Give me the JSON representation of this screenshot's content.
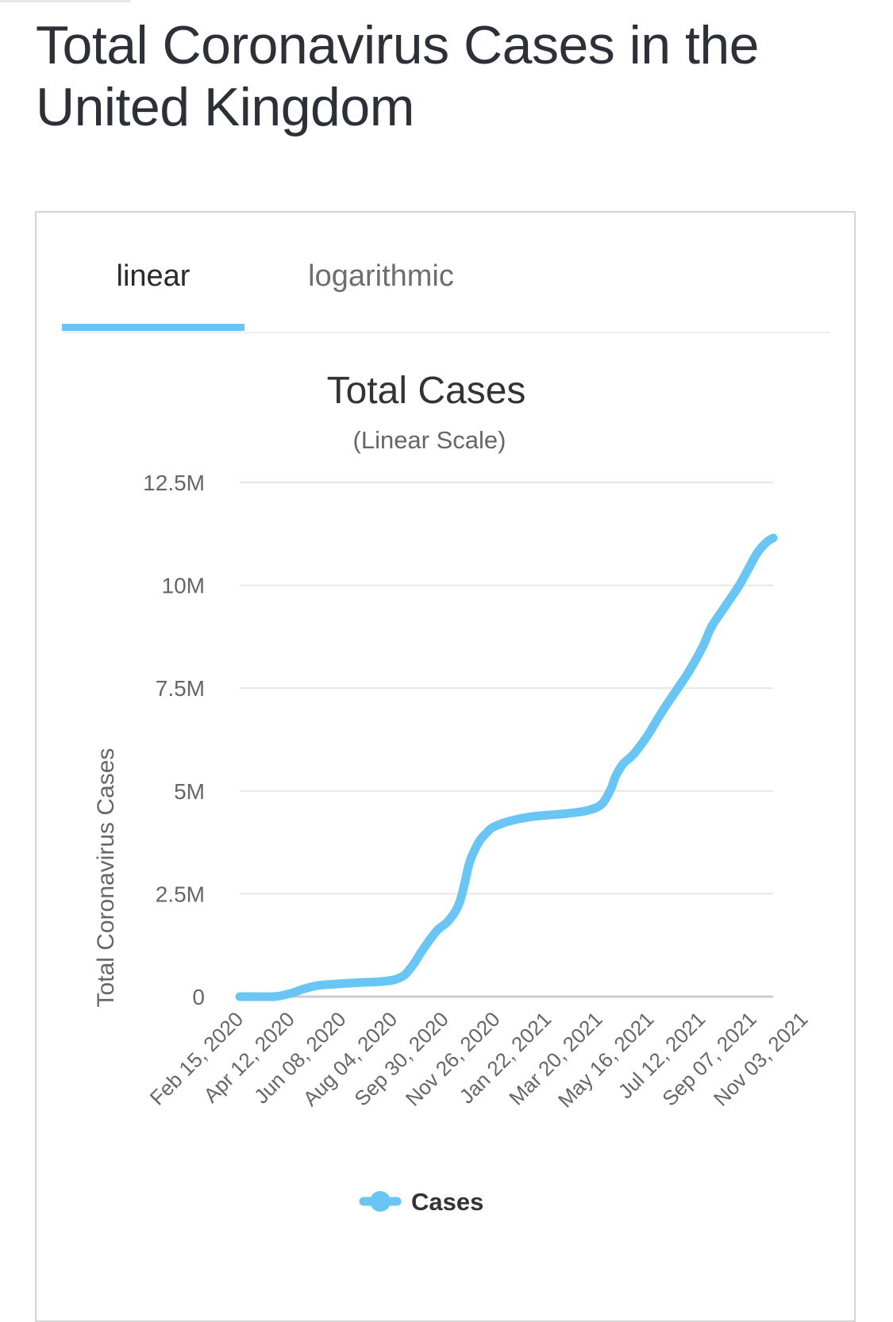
{
  "page": {
    "title": "Total Coronavirus Cases in the United Kingdom"
  },
  "tabs": {
    "linear_label": "linear",
    "log_label": "logarithmic",
    "active": "linear"
  },
  "colors": {
    "accent": "#69c5f3",
    "grid": "#e6e6e6",
    "axis_text": "#666666",
    "title_text": "#333333"
  },
  "chart_data": {
    "type": "line",
    "title": "Total Cases",
    "subtitle": "(Linear Scale)",
    "ylabel": "Total Coronavirus Cases",
    "xlabel": "",
    "ylim": [
      0,
      12500000
    ],
    "y_ticks": [
      0,
      2500000,
      5000000,
      7500000,
      10000000,
      12500000
    ],
    "y_tick_labels": [
      "0",
      "2.5M",
      "5M",
      "7.5M",
      "10M",
      "12.5M"
    ],
    "x_ticks": [
      "Feb 15, 2020",
      "Apr 12, 2020",
      "Jun 08, 2020",
      "Aug 04, 2020",
      "Sep 30, 2020",
      "Nov 26, 2020",
      "Jan 22, 2021",
      "Mar 20, 2021",
      "May 16, 2021",
      "Jul 12, 2021",
      "Sep 07, 2021",
      "Nov 03, 2021"
    ],
    "grid": true,
    "legend_position": "bottom-center",
    "series": [
      {
        "name": "Cases",
        "color": "#69c5f3",
        "x_days": [
          0,
          20,
          40,
          57,
          70,
          85,
          100,
          114,
          130,
          150,
          160,
          170,
          180,
          190,
          200,
          215,
          228,
          240,
          250,
          255,
          262,
          268,
          275,
          285,
          300,
          320,
          340,
          360,
          380,
          395,
          405,
          410,
          418,
          430,
          445,
          460,
          475,
          490,
          505,
          515,
          530,
          545,
          555,
          565,
          575,
          582
        ],
        "values": [
          9,
          1000,
          5000,
          90000,
          190000,
          270000,
          300000,
          320000,
          340000,
          360000,
          380000,
          420000,
          530000,
          800000,
          1150000,
          1600000,
          1850000,
          2300000,
          3200000,
          3500000,
          3800000,
          3950000,
          4100000,
          4200000,
          4300000,
          4380000,
          4420000,
          4460000,
          4530000,
          4680000,
          5050000,
          5350000,
          5650000,
          5900000,
          6350000,
          6900000,
          7400000,
          7900000,
          8500000,
          9000000,
          9500000,
          10000000,
          10400000,
          10800000,
          11050000,
          11150000
        ]
      }
    ]
  }
}
